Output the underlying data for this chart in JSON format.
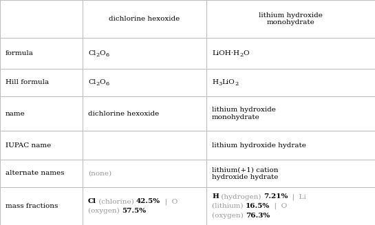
{
  "col_headers": [
    "dichlorine hexoxide",
    "lithium hydroxide\nmonohydrate"
  ],
  "row_labels": [
    "formula",
    "Hill formula",
    "name",
    "IUPAC name",
    "alternate names",
    "mass fractions"
  ],
  "bg_color": "#ffffff",
  "border_color": "#bbbbbb",
  "text_color": "#000000",
  "gray_color": "#999999",
  "col1_name": "dichlorine hexoxide",
  "col2_name": "lithium hydroxide\nmonohydrate",
  "col1_iupac": "",
  "col2_iupac": "lithium hydroxide hydrate",
  "col1_alt": "(none)",
  "col2_alt": "lithium(+1) cation\nhydroxide hydrate",
  "col1_mass_segments": [
    {
      "text": "Cl",
      "bold": true,
      "color": "#000000"
    },
    {
      "text": " (chlorine) ",
      "bold": false,
      "color": "#999999"
    },
    {
      "text": "42.5%",
      "bold": true,
      "color": "#000000"
    },
    {
      "text": "  |  O",
      "bold": false,
      "color": "#999999"
    },
    {
      "text": "\n",
      "bold": false,
      "color": "#999999"
    },
    {
      "text": "(oxygen) ",
      "bold": false,
      "color": "#999999"
    },
    {
      "text": "57.5%",
      "bold": true,
      "color": "#000000"
    }
  ],
  "col2_mass_segments": [
    {
      "text": "H",
      "bold": true,
      "color": "#000000"
    },
    {
      "text": " (hydrogen) ",
      "bold": false,
      "color": "#999999"
    },
    {
      "text": "7.21%",
      "bold": true,
      "color": "#000000"
    },
    {
      "text": "  |  Li",
      "bold": false,
      "color": "#999999"
    },
    {
      "text": "\n",
      "bold": false,
      "color": "#999999"
    },
    {
      "text": "(lithium) ",
      "bold": false,
      "color": "#999999"
    },
    {
      "text": "16.5%",
      "bold": true,
      "color": "#000000"
    },
    {
      "text": "  |  O",
      "bold": false,
      "color": "#999999"
    },
    {
      "text": "\n",
      "bold": false,
      "color": "#999999"
    },
    {
      "text": "(oxygen) ",
      "bold": false,
      "color": "#999999"
    },
    {
      "text": "76.3%",
      "bold": true,
      "color": "#000000"
    }
  ],
  "figsize": [
    5.45,
    3.27
  ],
  "dpi": 100
}
